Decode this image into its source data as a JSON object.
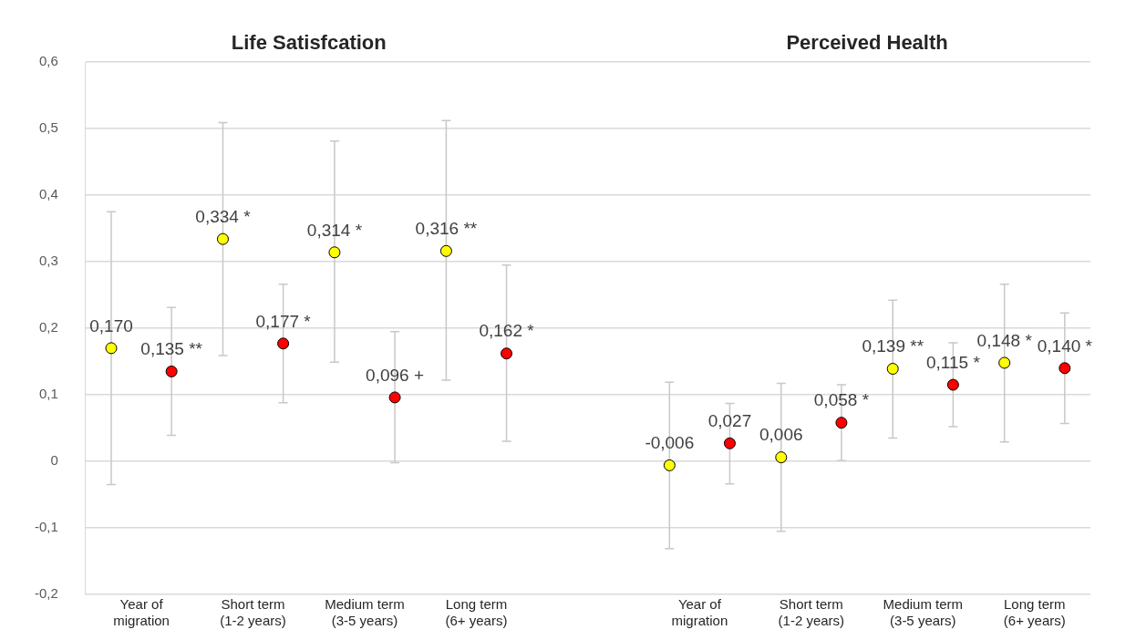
{
  "chart_data": {
    "type": "scatter",
    "annotations": [
      "Life Satisfcation",
      "Perceived Health"
    ],
    "categories": [
      "Year of\nmigration",
      "Short term\n(1-2 years)",
      "Medium term\n(3-5 years)",
      "Long term\n(6+ years)",
      null,
      "Year of\nmigration",
      "Short term\n(1-2 years)",
      "Medium term\n(3-5 years)",
      "Long term\n(6+ years)"
    ],
    "series": [
      {
        "color": "#ffff00",
        "values": [
          0.17,
          0.334,
          0.314,
          0.316,
          null,
          -0.006,
          0.006,
          0.139,
          0.148
        ],
        "errors": [
          [
            -0.035,
            0.375
          ],
          [
            0.159,
            0.509
          ],
          [
            0.149,
            0.481
          ],
          [
            0.122,
            0.512
          ],
          null,
          [
            -0.131,
            0.119
          ],
          [
            -0.105,
            0.117
          ],
          [
            0.035,
            0.242
          ],
          [
            0.029,
            0.266
          ]
        ],
        "value_labels": [
          "0,170",
          "0,334 *",
          "0,314 *",
          "0,316 **",
          null,
          "-0,006",
          "0,006",
          "0,139 **",
          "0,148 *"
        ]
      },
      {
        "color": "#ff0000",
        "values": [
          0.135,
          0.177,
          0.096,
          0.162,
          null,
          0.027,
          0.058,
          0.115,
          0.14
        ],
        "errors": [
          [
            0.039,
            0.231
          ],
          [
            0.088,
            0.266
          ],
          [
            -0.002,
            0.195
          ],
          [
            0.03,
            0.295
          ],
          null,
          [
            -0.034,
            0.087
          ],
          [
            0.001,
            0.115
          ],
          [
            0.052,
            0.178
          ],
          [
            0.057,
            0.223
          ]
        ],
        "value_labels": [
          "0,135 **",
          "0,177 *",
          "0,096 +",
          "0,162 *",
          null,
          "0,027",
          "0,058 *",
          "0,115 *",
          "0,140 *"
        ]
      }
    ],
    "ylim": [
      -0.2,
      0.6
    ],
    "yticks": [
      {
        "value": -0.2,
        "label": "-0,2"
      },
      {
        "value": -0.1,
        "label": "-0,1"
      },
      {
        "value": 0,
        "label": "0"
      },
      {
        "value": 0.1,
        "label": "0,1"
      },
      {
        "value": 0.2,
        "label": "0,2"
      },
      {
        "value": 0.3,
        "label": "0,3"
      },
      {
        "value": 0.4,
        "label": "0,4"
      },
      {
        "value": 0.5,
        "label": "0,5"
      },
      {
        "value": 0.6,
        "label": "0,6"
      }
    ],
    "grid": "y",
    "legend": false,
    "marker": "circle"
  }
}
